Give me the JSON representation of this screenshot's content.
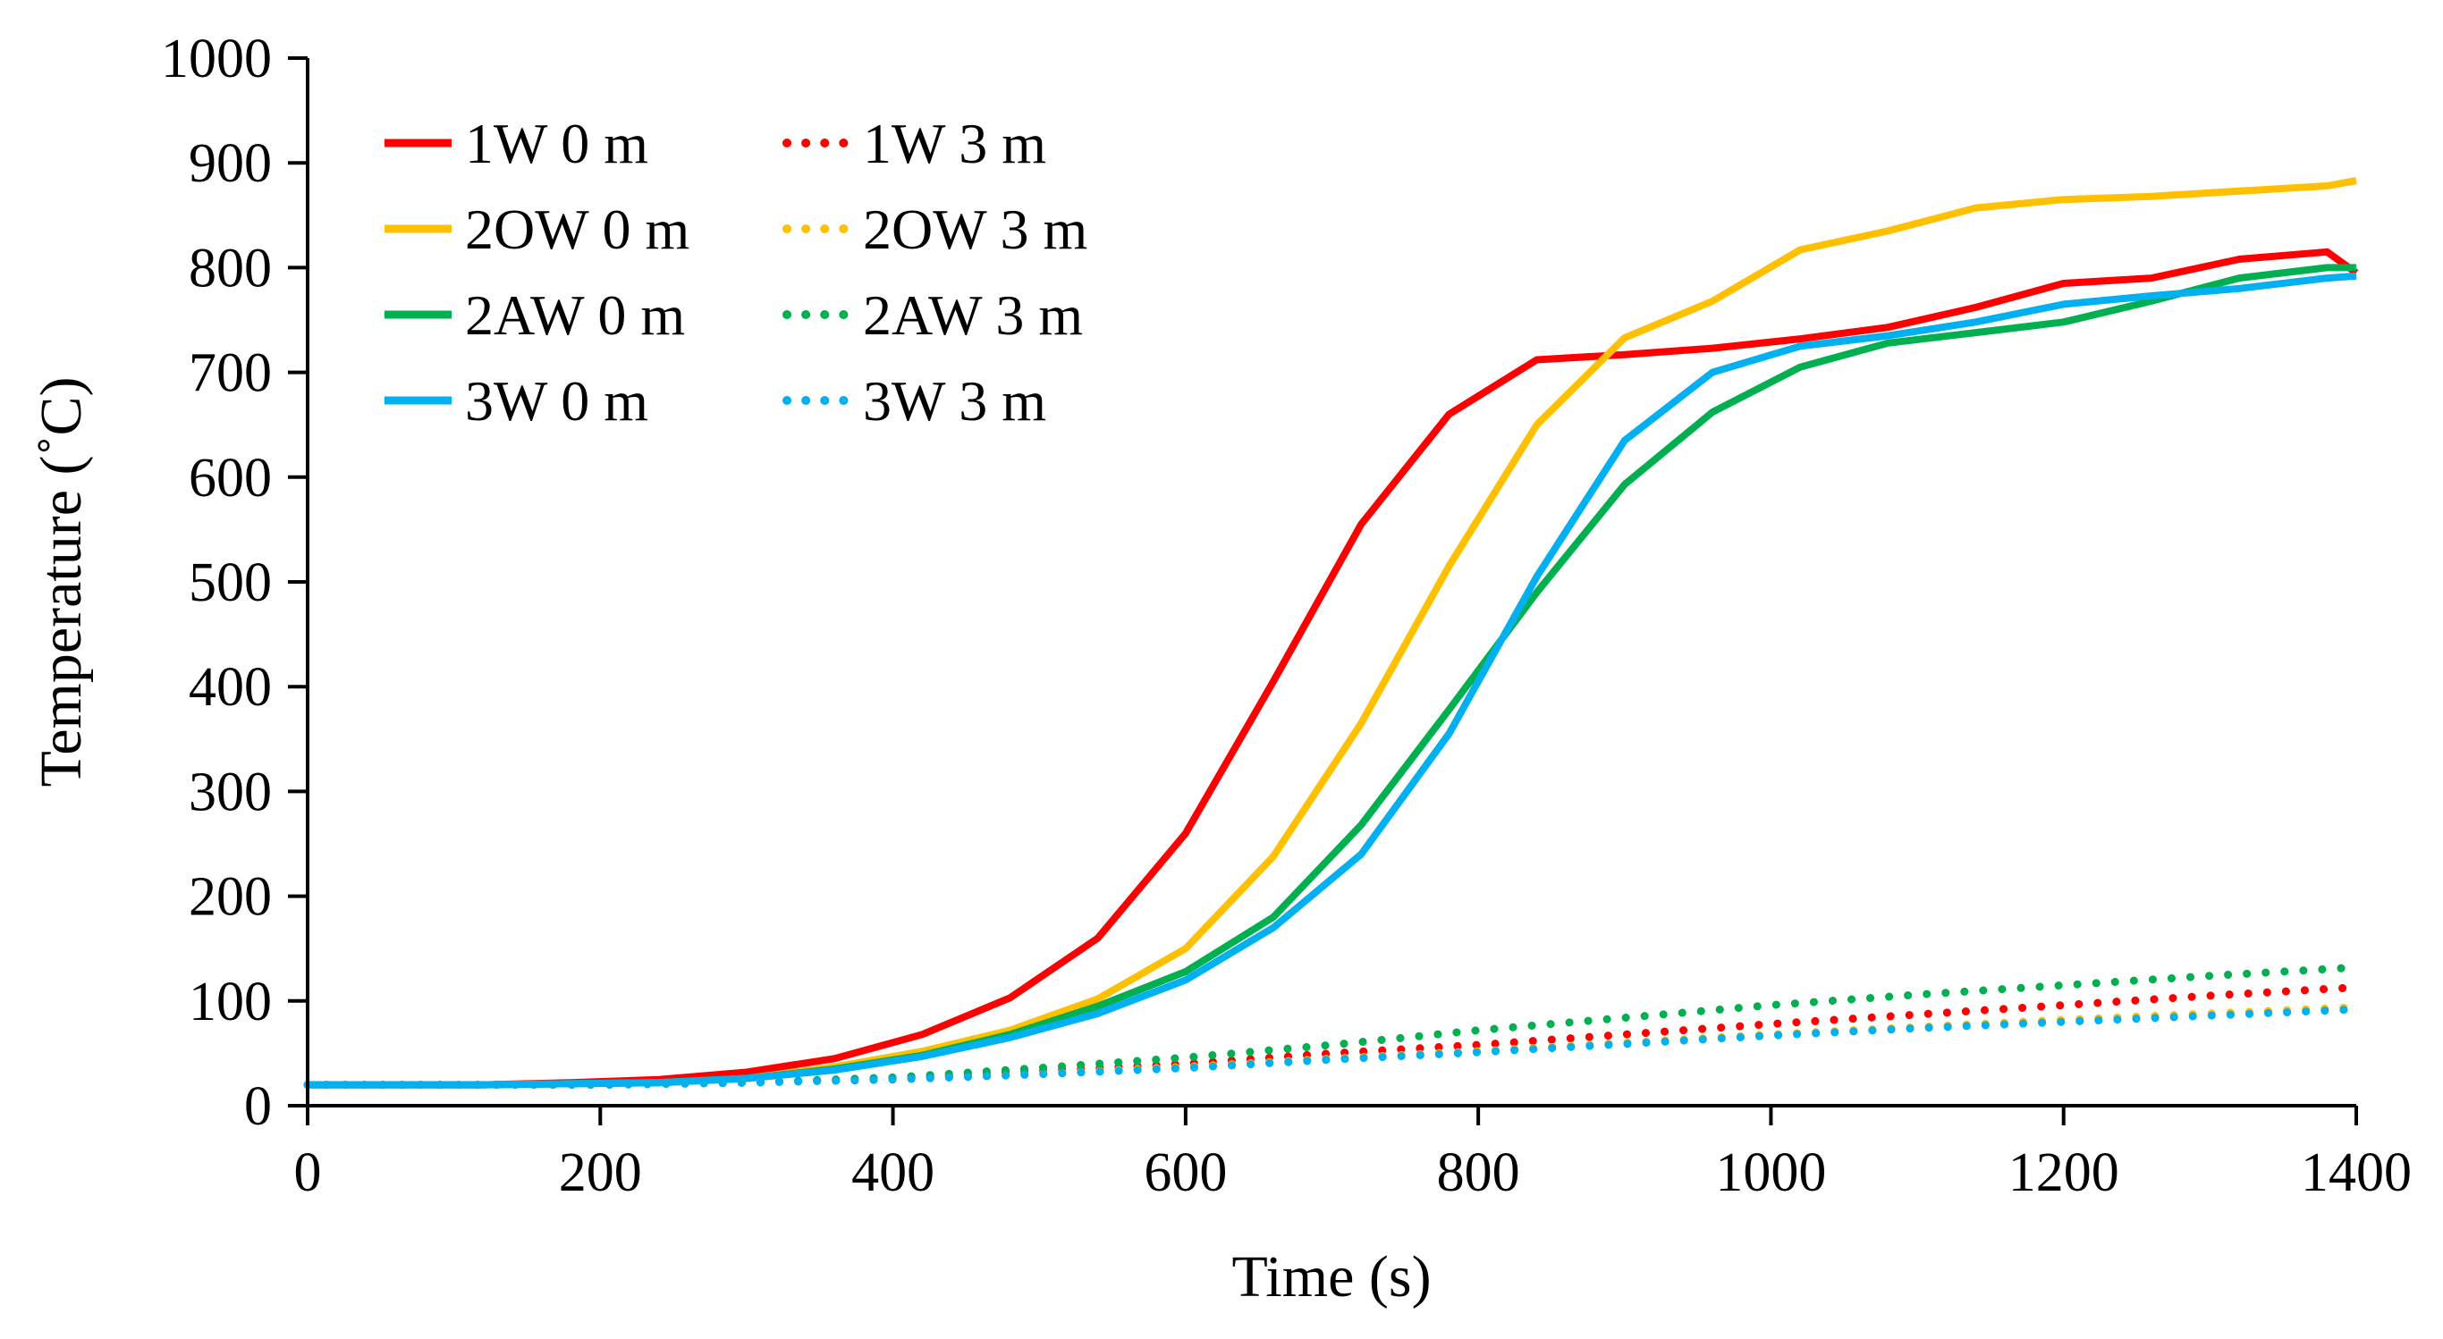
{
  "colors": {
    "red": "#ff0000",
    "orange": "#ffc000",
    "green": "#00b050",
    "blue": "#00b0f0",
    "axis": "#000000"
  },
  "chart_data": {
    "type": "line",
    "title": "",
    "xlabel": "Time (s)",
    "ylabel": "Temperature (˚C)",
    "xlim": [
      0,
      1400
    ],
    "ylim": [
      0,
      1000
    ],
    "xticks": [
      "0",
      "200",
      "400",
      "600",
      "800",
      "1000",
      "1200",
      "1400"
    ],
    "yticks": [
      "0",
      "100",
      "200",
      "300",
      "400",
      "500",
      "600",
      "700",
      "800",
      "900",
      "1000"
    ],
    "grid": false,
    "legend_position": "top-left",
    "series": [
      {
        "name": "1W 0 m",
        "color": "#ff0000",
        "style": "solid",
        "x": [
          0,
          60,
          120,
          180,
          240,
          300,
          360,
          420,
          480,
          540,
          600,
          660,
          720,
          780,
          840,
          900,
          960,
          1020,
          1080,
          1140,
          1200,
          1260,
          1320,
          1380,
          1400
        ],
        "y": [
          20,
          20,
          20,
          22,
          25,
          32,
          45,
          68,
          103,
          160,
          260,
          405,
          555,
          660,
          712,
          717,
          723,
          732,
          743,
          762,
          785,
          790,
          808,
          815,
          795
        ]
      },
      {
        "name": "1W 3 m",
        "color": "#ff0000",
        "style": "dotted",
        "x": [
          0,
          100,
          200,
          300,
          400,
          500,
          600,
          700,
          800,
          900,
          1000,
          1100,
          1200,
          1300,
          1400
        ],
        "y": [
          20,
          20,
          20,
          22,
          26,
          33,
          40,
          50,
          58,
          68,
          78,
          87,
          96,
          105,
          113
        ]
      },
      {
        "name": "2OW 0 m",
        "color": "#ffc000",
        "style": "solid",
        "x": [
          0,
          60,
          120,
          180,
          240,
          300,
          360,
          420,
          480,
          540,
          600,
          660,
          720,
          780,
          840,
          900,
          960,
          1020,
          1080,
          1140,
          1200,
          1260,
          1320,
          1380,
          1400
        ],
        "y": [
          20,
          20,
          20,
          21,
          22,
          26,
          37,
          52,
          72,
          102,
          150,
          238,
          365,
          515,
          650,
          733,
          768,
          817,
          835,
          857,
          865,
          868,
          873,
          878,
          883
        ]
      },
      {
        "name": "2OW 3 m",
        "color": "#ffc000",
        "style": "dotted",
        "x": [
          0,
          100,
          200,
          300,
          400,
          500,
          600,
          700,
          800,
          900,
          1000,
          1100,
          1200,
          1300,
          1400
        ],
        "y": [
          20,
          20,
          20,
          22,
          25,
          31,
          37,
          45,
          52,
          60,
          68,
          75,
          82,
          88,
          94
        ]
      },
      {
        "name": "2AW 0 m",
        "color": "#00b050",
        "style": "solid",
        "x": [
          0,
          60,
          120,
          180,
          240,
          300,
          360,
          420,
          480,
          540,
          600,
          660,
          720,
          780,
          840,
          900,
          960,
          1020,
          1080,
          1140,
          1200,
          1260,
          1320,
          1380,
          1400
        ],
        "y": [
          20,
          20,
          20,
          21,
          22,
          26,
          35,
          48,
          68,
          95,
          128,
          180,
          268,
          378,
          490,
          593,
          662,
          705,
          728,
          738,
          748,
          768,
          790,
          800,
          800
        ]
      },
      {
        "name": "2AW 3 m",
        "color": "#00b050",
        "style": "dotted",
        "x": [
          0,
          100,
          200,
          300,
          400,
          500,
          600,
          700,
          800,
          900,
          1000,
          1100,
          1200,
          1300,
          1400
        ],
        "y": [
          20,
          20,
          20,
          22,
          27,
          36,
          46,
          58,
          72,
          84,
          96,
          106,
          115,
          124,
          132
        ]
      },
      {
        "name": "3W 0 m",
        "color": "#00b0f0",
        "style": "solid",
        "x": [
          0,
          60,
          120,
          180,
          240,
          300,
          360,
          420,
          480,
          540,
          600,
          660,
          720,
          780,
          840,
          900,
          960,
          1020,
          1080,
          1140,
          1200,
          1260,
          1320,
          1380,
          1400
        ],
        "y": [
          20,
          20,
          20,
          21,
          22,
          26,
          34,
          47,
          65,
          88,
          120,
          170,
          240,
          355,
          505,
          635,
          700,
          725,
          735,
          748,
          765,
          773,
          780,
          790,
          792
        ]
      },
      {
        "name": "3W 3 m",
        "color": "#00b0f0",
        "style": "dotted",
        "x": [
          0,
          100,
          200,
          300,
          400,
          500,
          600,
          700,
          800,
          900,
          1000,
          1100,
          1200,
          1300,
          1400
        ],
        "y": [
          20,
          20,
          20,
          22,
          25,
          30,
          36,
          44,
          51,
          59,
          67,
          74,
          80,
          86,
          92
        ]
      }
    ]
  }
}
